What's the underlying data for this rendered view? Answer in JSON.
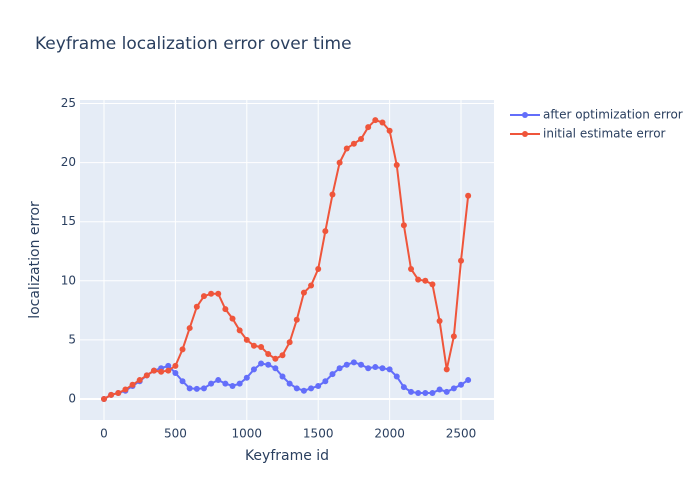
{
  "chart_data": {
    "type": "line",
    "title": "Keyframe localization error over time",
    "x_label": "Keyframe id",
    "y_label": "localization error",
    "x": [
      0,
      50,
      100,
      150,
      200,
      250,
      300,
      350,
      400,
      450,
      500,
      550,
      600,
      650,
      700,
      750,
      800,
      850,
      900,
      950,
      1000,
      1050,
      1100,
      1150,
      1200,
      1250,
      1300,
      1350,
      1400,
      1450,
      1500,
      1550,
      1600,
      1650,
      1700,
      1750,
      1800,
      1850,
      1900,
      1950,
      2000,
      2050,
      2100,
      2150,
      2200,
      2250,
      2300,
      2350,
      2400,
      2450,
      2500,
      2550
    ],
    "series": [
      {
        "name": "after optimization error",
        "color": "#636efa",
        "values": [
          0,
          0.35,
          0.5,
          0.7,
          1.1,
          1.5,
          2.0,
          2.4,
          2.6,
          2.8,
          2.2,
          1.5,
          0.9,
          0.85,
          0.9,
          1.3,
          1.6,
          1.3,
          1.1,
          1.3,
          1.8,
          2.5,
          3.0,
          2.9,
          2.6,
          1.9,
          1.3,
          0.9,
          0.7,
          0.9,
          1.1,
          1.5,
          2.1,
          2.6,
          2.9,
          3.1,
          2.9,
          2.6,
          2.7,
          2.6,
          2.5,
          1.9,
          1.0,
          0.6,
          0.5,
          0.5,
          0.5,
          0.8,
          0.6,
          0.9,
          1.2,
          1.6
        ]
      },
      {
        "name": "initial estimate error",
        "color": "#ef553b",
        "values": [
          0,
          0.35,
          0.5,
          0.8,
          1.2,
          1.6,
          2.0,
          2.4,
          2.3,
          2.4,
          2.8,
          4.2,
          6.0,
          7.8,
          8.7,
          8.9,
          8.9,
          7.6,
          6.8,
          5.8,
          5.0,
          4.5,
          4.4,
          3.8,
          3.4,
          3.7,
          4.8,
          6.7,
          9.0,
          9.6,
          11.0,
          14.2,
          17.3,
          20.0,
          21.2,
          21.6,
          22.0,
          23.0,
          23.6,
          23.4,
          22.7,
          19.8,
          14.7,
          11.0,
          10.1,
          10.0,
          9.7,
          6.6,
          2.5,
          5.3,
          11.7,
          17.2
        ]
      }
    ],
    "xlim": [
      -168,
      2731
    ],
    "ylim": [
      -1.78,
      25.3
    ],
    "xticks": [
      0,
      500,
      1000,
      1500,
      2000,
      2500
    ],
    "yticks": [
      0,
      5,
      10,
      15,
      20,
      25
    ],
    "grid": true,
    "legend": "right",
    "background": "#e5ecf6"
  }
}
